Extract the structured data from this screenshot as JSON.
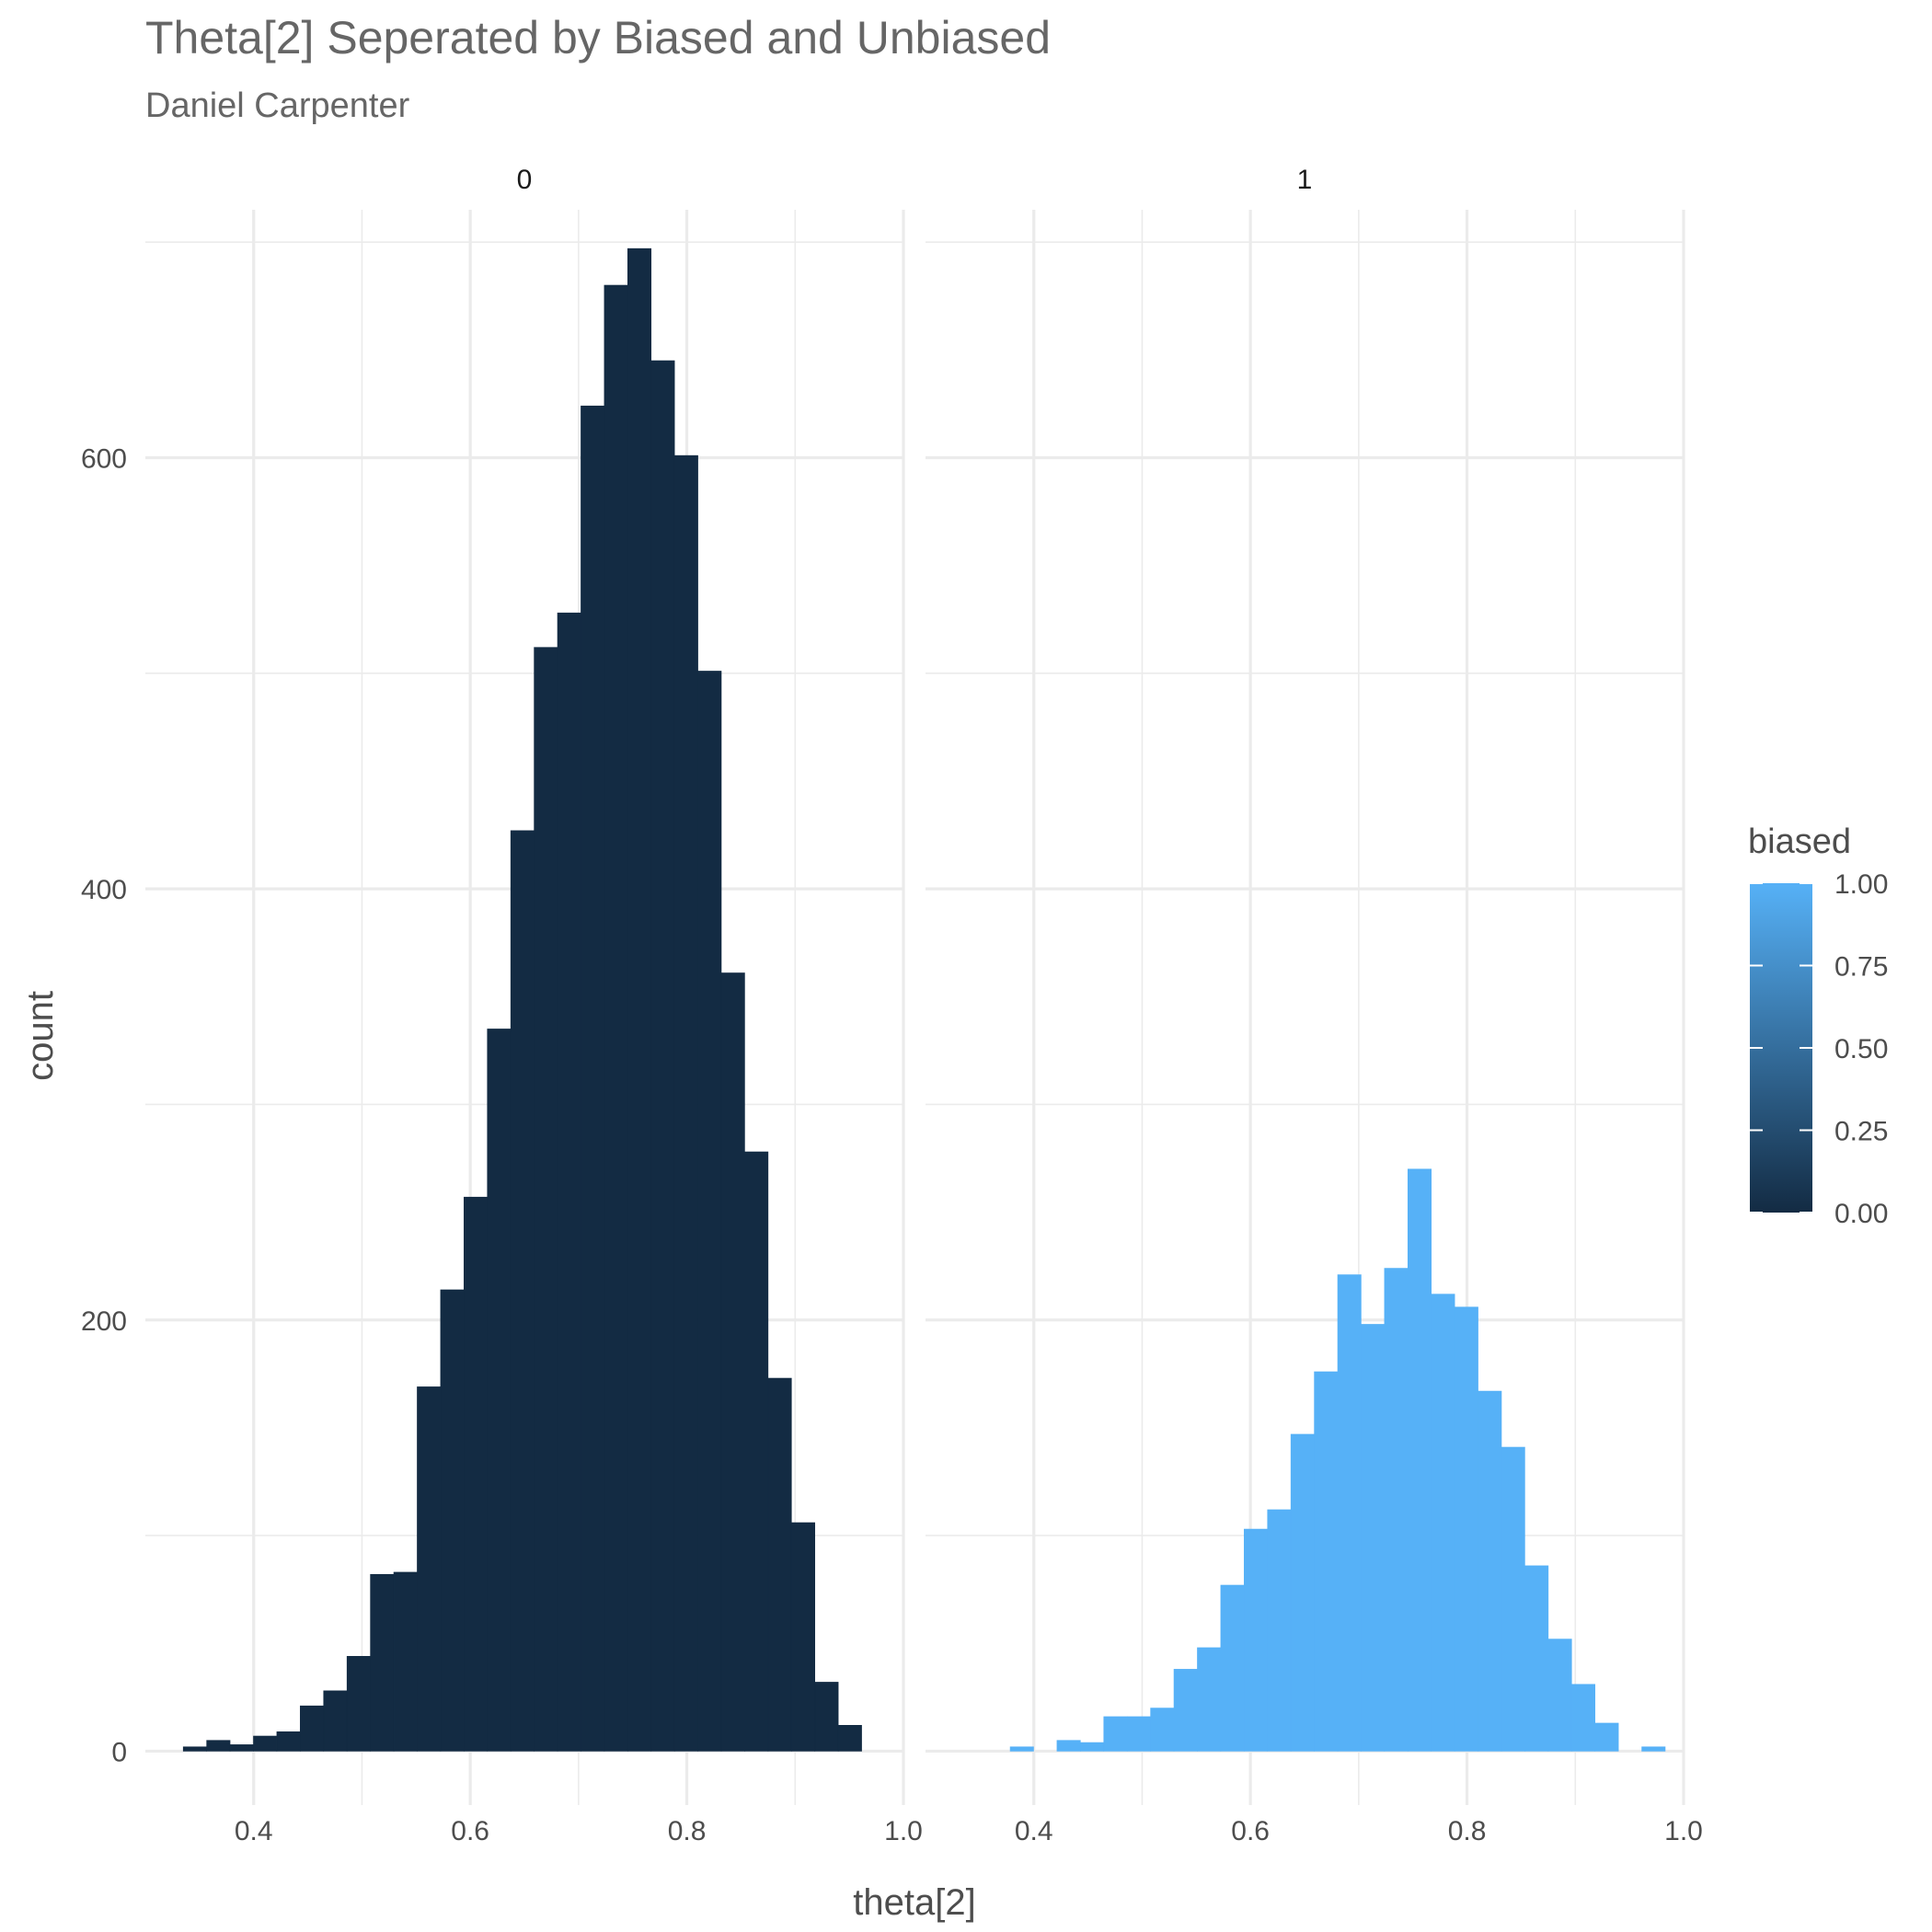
{
  "title": "Theta[2] Seperated by Biased and Unbiased",
  "subtitle": "Daniel Carpenter",
  "chart_data": {
    "type": "bar",
    "title": "Theta[2] Seperated by Biased and Unbiased",
    "subtitle": "Daniel Carpenter",
    "xlabel": "theta[2]",
    "ylabel": "count",
    "xlim": [
      0.3,
      1.0
    ],
    "ylim": [
      -25,
      715
    ],
    "x_ticks": [
      0.4,
      0.6,
      0.8,
      1.0
    ],
    "x_tick_labels": [
      "0.4",
      "0.6",
      "0.8",
      "1.0"
    ],
    "y_ticks": [
      0,
      200,
      400,
      600
    ],
    "y_tick_labels": [
      "0",
      "200",
      "400",
      "600"
    ],
    "grid": true,
    "legend_position": "right",
    "facets": [
      {
        "label": "0",
        "color": "#132b43",
        "bin_width": 0.0216,
        "bin_starts": [
          0.335,
          0.3566,
          0.3782,
          0.3998,
          0.4214,
          0.443,
          0.4646,
          0.4862,
          0.5078,
          0.5294,
          0.551,
          0.5726,
          0.5942,
          0.6158,
          0.6374,
          0.659,
          0.6806,
          0.7022,
          0.7238,
          0.7454,
          0.767,
          0.7886,
          0.8102,
          0.8318,
          0.8534,
          0.875,
          0.8966,
          0.9182,
          0.9398
        ],
        "counts": [
          2,
          5,
          3,
          7,
          9,
          21,
          28,
          44,
          82,
          83,
          169,
          214,
          257,
          335,
          427,
          512,
          528,
          624,
          680,
          697,
          645,
          601,
          501,
          361,
          278,
          173,
          106,
          32,
          12
        ]
      },
      {
        "label": "1",
        "color": "#56b1f7",
        "bin_width": 0.0216,
        "bin_starts": [
          0.3782,
          0.4214,
          0.443,
          0.4646,
          0.4862,
          0.5078,
          0.5294,
          0.551,
          0.5726,
          0.5942,
          0.6158,
          0.6374,
          0.659,
          0.6806,
          0.7022,
          0.7238,
          0.7454,
          0.767,
          0.7886,
          0.8102,
          0.8318,
          0.8534,
          0.875,
          0.8966,
          0.9182,
          0.9614
        ],
        "counts": [
          2,
          5,
          4,
          16,
          16,
          20,
          38,
          48,
          77,
          103,
          112,
          147,
          176,
          221,
          198,
          224,
          270,
          212,
          206,
          167,
          141,
          86,
          52,
          31,
          13,
          2
        ]
      }
    ],
    "legend": {
      "title": "biased",
      "low_color": "#132b43",
      "high_color": "#56b1f7",
      "range": [
        0,
        1
      ],
      "breaks": [
        1.0,
        0.75,
        0.5,
        0.25,
        0.0
      ],
      "labels": [
        "1.00",
        "0.75",
        "0.50",
        "0.25",
        "0.00"
      ]
    }
  }
}
